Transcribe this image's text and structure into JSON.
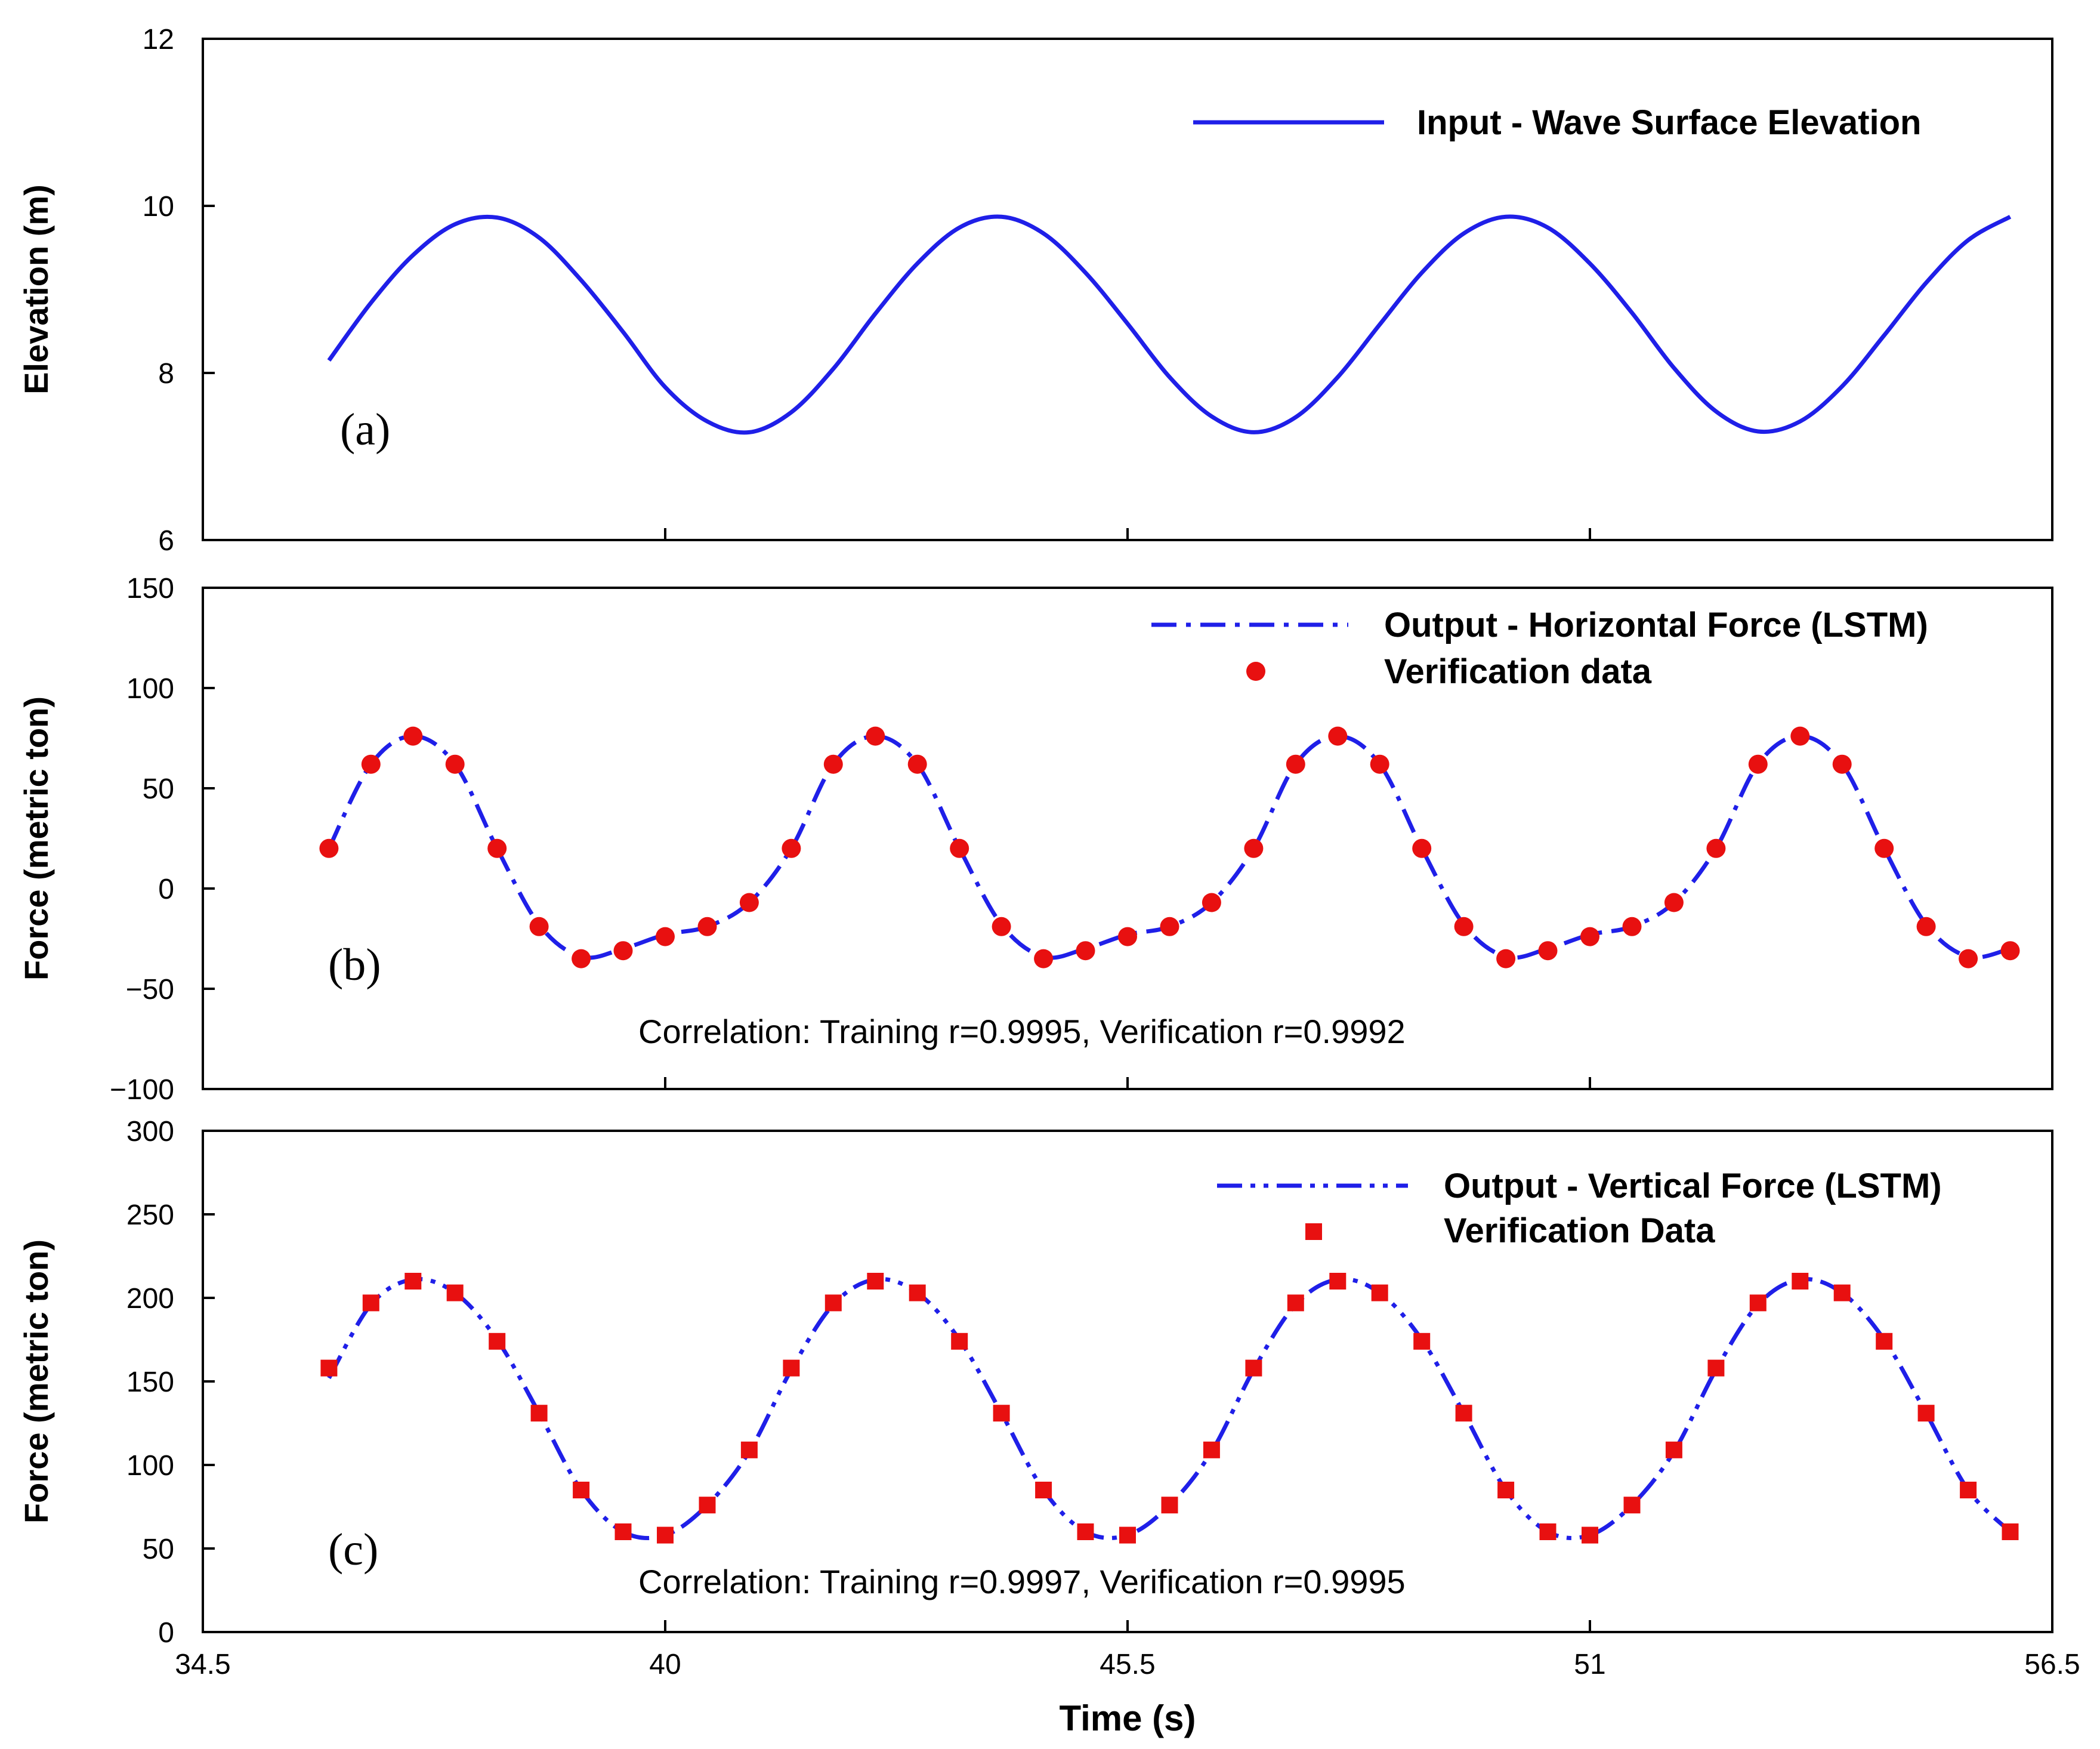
{
  "figure": {
    "x_axis_label": "Time (s)",
    "x_ticks": [
      "34.5",
      "40",
      "45.5",
      "51",
      "56.5"
    ]
  },
  "panels": [
    {
      "label": "(a)",
      "ylabel": "Elevation (m)",
      "yticks": [
        "6",
        "8",
        "10",
        "12"
      ],
      "legend": [
        "Input - Wave Surface Elevation"
      ],
      "note": ""
    },
    {
      "label": "(b)",
      "ylabel": "Force (metric ton)",
      "yticks": [
        "−100",
        "−50",
        "0",
        "50",
        "100",
        "150"
      ],
      "legend": [
        "Output - Horizontal Force (LSTM)",
        "Verification data"
      ],
      "note": "Correlation: Training r=0.9995, Verification r=0.9992"
    },
    {
      "label": "(c)",
      "ylabel": "Force (metric ton)",
      "yticks": [
        "0",
        "50",
        "100",
        "150",
        "200",
        "250",
        "300"
      ],
      "legend": [
        "Output - Vertical Force (LSTM)",
        "Verification Data"
      ],
      "note": "Correlation: Training r=0.9997, Verification r=0.9995"
    }
  ],
  "colors": {
    "line": "#1f1fe8",
    "markers": "#e81010",
    "axes": "#000000"
  },
  "chart_data": [
    {
      "type": "line",
      "title": "",
      "xlabel": "",
      "ylabel": "Elevation (m)",
      "xlim": [
        34.5,
        56.5
      ],
      "ylim": [
        6,
        12
      ],
      "series": [
        {
          "name": "Input - Wave Surface Elevation",
          "style": "solid",
          "x": [
            36,
            36.5,
            37,
            37.5,
            38,
            38.5,
            39,
            39.5,
            40,
            40.5,
            41,
            41.5,
            42,
            42.5,
            43,
            43.5,
            44,
            44.5,
            45,
            45.5,
            46,
            46.5,
            47,
            47.5,
            48,
            48.5,
            49,
            49.5,
            50,
            50.5,
            51,
            51.5,
            52,
            52.5,
            53,
            53.5,
            54,
            54.5,
            55,
            55.5,
            56
          ],
          "y": [
            8.15,
            8.84,
            9.41,
            9.78,
            9.86,
            9.62,
            9.11,
            8.49,
            7.83,
            7.42,
            7.29,
            7.53,
            8.05,
            8.71,
            9.31,
            9.74,
            9.87,
            9.67,
            9.2,
            8.59,
            7.95,
            7.48,
            7.29,
            7.47,
            7.95,
            8.58,
            9.2,
            9.67,
            9.87,
            9.74,
            9.31,
            8.72,
            8.06,
            7.54,
            7.3,
            7.42,
            7.84,
            8.45,
            9.08,
            9.59,
            9.87
          ]
        }
      ]
    },
    {
      "type": "line",
      "title": "",
      "xlabel": "",
      "ylabel": "Force (metric ton)",
      "xlim": [
        34.5,
        56.5
      ],
      "ylim": [
        -100,
        150
      ],
      "series": [
        {
          "name": "Output - Horizontal Force (LSTM)",
          "style": "dashdot",
          "x": [
            36,
            36.5,
            37,
            37.5,
            38,
            38.5,
            39,
            39.5,
            40,
            40.5,
            41,
            41.5,
            42,
            42.5,
            43,
            43.5,
            44,
            44.5,
            45,
            45.5,
            46,
            46.5,
            47,
            47.5,
            48,
            48.5,
            49,
            49.5,
            50,
            50.5,
            51,
            51.5,
            52,
            52.5,
            53,
            53.5,
            54,
            54.5,
            55,
            55.5,
            56
          ],
          "y": [
            20,
            62,
            76,
            62,
            20,
            -18,
            -34,
            -30,
            -23,
            -19,
            -7,
            20,
            62,
            76,
            62,
            20,
            -18,
            -34,
            -30,
            -23,
            -19,
            -7,
            20,
            62,
            76,
            62,
            20,
            -18,
            -34,
            -30,
            -23,
            -19,
            -7,
            20,
            62,
            76,
            62,
            20,
            -18,
            -34,
            -30
          ]
        },
        {
          "name": "Verification data",
          "style": "circle-markers",
          "x": [
            36,
            36.5,
            37,
            37.5,
            38,
            38.5,
            39,
            39.5,
            40,
            40.5,
            41,
            41.5,
            42,
            42.5,
            43,
            43.5,
            44,
            44.5,
            45,
            45.5,
            46,
            46.5,
            47,
            47.5,
            48,
            48.5,
            49,
            49.5,
            50,
            50.5,
            51,
            51.5,
            52,
            52.5,
            53,
            53.5,
            54,
            54.5,
            55,
            55.5,
            56
          ],
          "y": [
            20,
            62,
            76,
            62,
            20,
            -19,
            -35,
            -31,
            -24,
            -19,
            -7,
            20,
            62,
            76,
            62,
            20,
            -19,
            -35,
            -31,
            -24,
            -19,
            -7,
            20,
            62,
            76,
            62,
            20,
            -19,
            -35,
            -31,
            -24,
            -19,
            -7,
            20,
            62,
            76,
            62,
            20,
            -19,
            -35,
            -31
          ]
        }
      ]
    },
    {
      "type": "line",
      "title": "",
      "xlabel": "Time (s)",
      "ylabel": "Force (metric ton)",
      "xlim": [
        34.5,
        56.5
      ],
      "ylim": [
        0,
        300
      ],
      "series": [
        {
          "name": "Output - Vertical Force (LSTM)",
          "style": "dashdotdot",
          "x": [
            36,
            36.5,
            37,
            37.5,
            38,
            38.5,
            39,
            39.5,
            40,
            40.5,
            41,
            41.5,
            42,
            42.5,
            43,
            43.5,
            44,
            44.5,
            45,
            45.5,
            46,
            46.5,
            47,
            47.5,
            48,
            48.5,
            49,
            49.5,
            50,
            50.5,
            51,
            51.5,
            52,
            52.5,
            53,
            53.5,
            54,
            54.5,
            55,
            55.5,
            56
          ],
          "y": [
            152,
            196,
            211,
            203,
            175,
            131,
            85,
            60,
            58,
            76,
            108,
            157,
            196,
            211,
            203,
            175,
            131,
            85,
            60,
            58,
            76,
            108,
            157,
            196,
            211,
            203,
            175,
            131,
            85,
            60,
            58,
            76,
            108,
            157,
            196,
            211,
            203,
            175,
            131,
            85,
            60
          ]
        },
        {
          "name": "Verification Data",
          "style": "square-markers",
          "x": [
            36,
            36.5,
            37,
            37.5,
            38,
            38.5,
            39,
            39.5,
            40,
            40.5,
            41,
            41.5,
            42,
            42.5,
            43,
            43.5,
            44,
            44.5,
            45,
            45.5,
            46,
            46.5,
            47,
            47.5,
            48,
            48.5,
            49,
            49.5,
            50,
            50.5,
            51,
            51.5,
            52,
            52.5,
            53,
            53.5,
            54,
            54.5,
            55,
            55.5,
            56
          ],
          "y": [
            158,
            197,
            210,
            203,
            174,
            131,
            85,
            60,
            58,
            76,
            109,
            158,
            197,
            210,
            203,
            174,
            131,
            85,
            60,
            58,
            76,
            109,
            158,
            197,
            210,
            203,
            174,
            131,
            85,
            60,
            58,
            76,
            109,
            158,
            197,
            210,
            203,
            174,
            131,
            85,
            60
          ]
        }
      ]
    }
  ]
}
